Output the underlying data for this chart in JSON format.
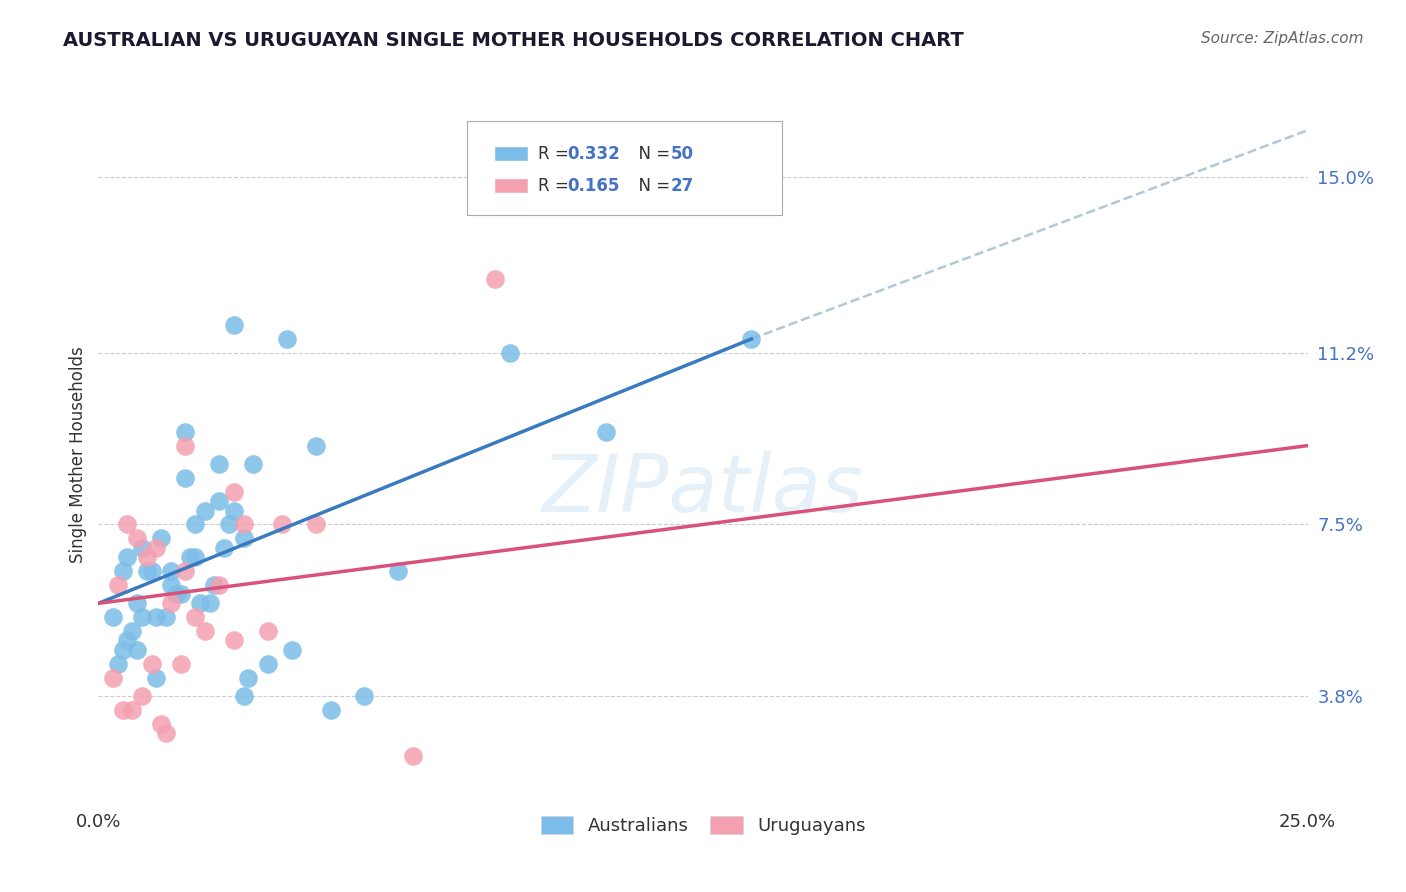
{
  "title": "AUSTRALIAN VS URUGUAYAN SINGLE MOTHER HOUSEHOLDS CORRELATION CHART",
  "source": "Source: ZipAtlas.com",
  "ylabel": "Single Mother Households",
  "ytick_values": [
    3.8,
    7.5,
    11.2,
    15.0
  ],
  "xmin": 0.0,
  "xmax": 25.0,
  "ymin": 1.5,
  "ymax": 16.5,
  "watermark": "ZIPatlas",
  "aus_color": "#7bbde8",
  "uru_color": "#f4a0b0",
  "aus_line_color": "#3a7abf",
  "uru_line_color": "#d9527a",
  "dashed_line_color": "#b0c8d8",
  "aus_scatter_x": [
    0.3,
    0.4,
    0.5,
    0.5,
    0.6,
    0.7,
    0.8,
    0.8,
    0.9,
    1.0,
    1.1,
    1.2,
    1.3,
    1.4,
    1.5,
    1.6,
    1.7,
    1.8,
    1.9,
    2.0,
    2.1,
    2.2,
    2.3,
    2.5,
    2.6,
    2.7,
    2.8,
    3.0,
    3.1,
    3.2,
    3.5,
    3.9,
    4.0,
    4.5,
    4.8,
    5.5,
    6.2,
    1.5,
    2.0,
    2.5,
    0.6,
    0.9,
    1.2,
    1.8,
    2.4,
    3.0,
    8.5,
    10.5,
    2.8,
    13.5
  ],
  "aus_scatter_y": [
    5.5,
    4.5,
    4.8,
    6.5,
    5.0,
    5.2,
    5.8,
    4.8,
    5.5,
    6.5,
    6.5,
    5.5,
    7.2,
    5.5,
    6.2,
    6.0,
    6.0,
    8.5,
    6.8,
    7.5,
    5.8,
    7.8,
    5.8,
    8.0,
    7.0,
    7.5,
    7.8,
    7.2,
    4.2,
    8.8,
    4.5,
    11.5,
    4.8,
    9.2,
    3.5,
    3.8,
    6.5,
    6.5,
    6.8,
    8.8,
    6.8,
    7.0,
    4.2,
    9.5,
    6.2,
    3.8,
    11.2,
    9.5,
    11.8,
    11.5
  ],
  "uru_scatter_x": [
    0.3,
    0.4,
    0.5,
    0.6,
    0.7,
    0.8,
    0.9,
    1.0,
    1.1,
    1.2,
    1.3,
    1.4,
    1.5,
    1.7,
    1.8,
    1.8,
    2.0,
    2.2,
    2.5,
    2.8,
    2.8,
    3.0,
    3.5,
    3.8,
    4.5,
    6.5,
    8.2
  ],
  "uru_scatter_y": [
    4.2,
    6.2,
    3.5,
    7.5,
    3.5,
    7.2,
    3.8,
    6.8,
    4.5,
    7.0,
    3.2,
    3.0,
    5.8,
    4.5,
    6.5,
    9.2,
    5.5,
    5.2,
    6.2,
    5.0,
    8.2,
    7.5,
    5.2,
    7.5,
    7.5,
    2.5,
    12.8
  ],
  "aus_line_x0": 0.0,
  "aus_line_x1": 13.5,
  "aus_line_y0": 5.8,
  "aus_line_y1": 11.5,
  "uru_line_x0": 0.0,
  "uru_line_x1": 25.0,
  "uru_line_y0": 5.8,
  "uru_line_y1": 9.2,
  "dash_x0": 13.5,
  "dash_x1": 25.0,
  "dash_y0": 11.5,
  "dash_y1": 16.0
}
